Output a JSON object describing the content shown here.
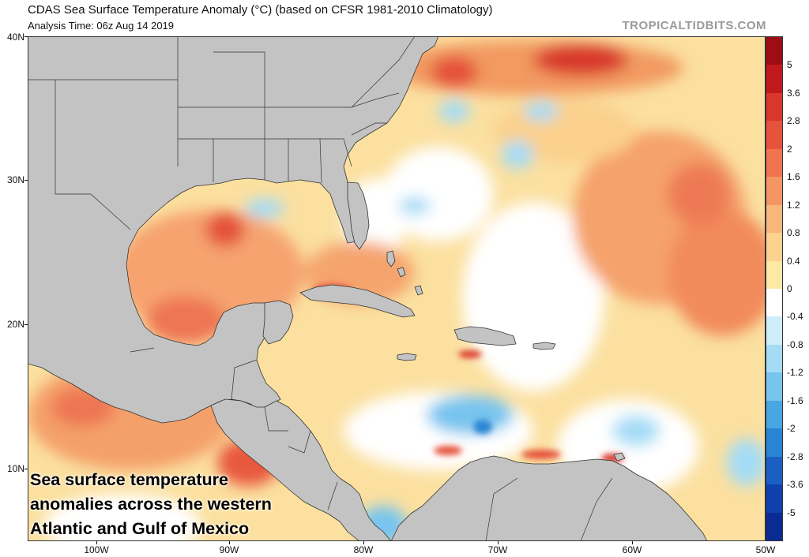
{
  "header": {
    "title": "CDAS Sea Surface Temperature Anomaly (°C) (based on CFSR 1981-2010 Climatology)",
    "analysis_time": "Analysis Time: 06z Aug 14 2019",
    "brand": "TROPICALTIDBITS.COM"
  },
  "axes": {
    "lat_labels": [
      "40N",
      "30N",
      "20N",
      "10N"
    ],
    "lon_labels": [
      "100W",
      "90W",
      "80W",
      "70W",
      "60W",
      "50W"
    ]
  },
  "colorbar": {
    "labels": [
      "5",
      "3.6",
      "2.8",
      "2",
      "1.6",
      "1.2",
      "0.8",
      "0.4",
      "0",
      "-0.4",
      "-0.8",
      "-1.2",
      "-1.6",
      "-2",
      "-2.8",
      "-3.6",
      "-5"
    ],
    "colors": [
      "#9e0d13",
      "#c0191d",
      "#d8372b",
      "#e6533c",
      "#ef7450",
      "#f49566",
      "#f8b57c",
      "#fbd28f",
      "#fde8a4",
      "#ffffff",
      "#cfeefb",
      "#a4dcf6",
      "#77c4ef",
      "#4aa5e3",
      "#2a84d3",
      "#1a5fc1",
      "#1040ad",
      "#0a2a94"
    ]
  },
  "caption": {
    "line1": "Sea surface temperature",
    "line2": "anomalies across the western",
    "line3": "Atlantic and Gulf of Mexico"
  },
  "map_colors": {
    "land": "#c3c3c3",
    "ocean_base": "#fbe0a0",
    "border": "#333333"
  }
}
